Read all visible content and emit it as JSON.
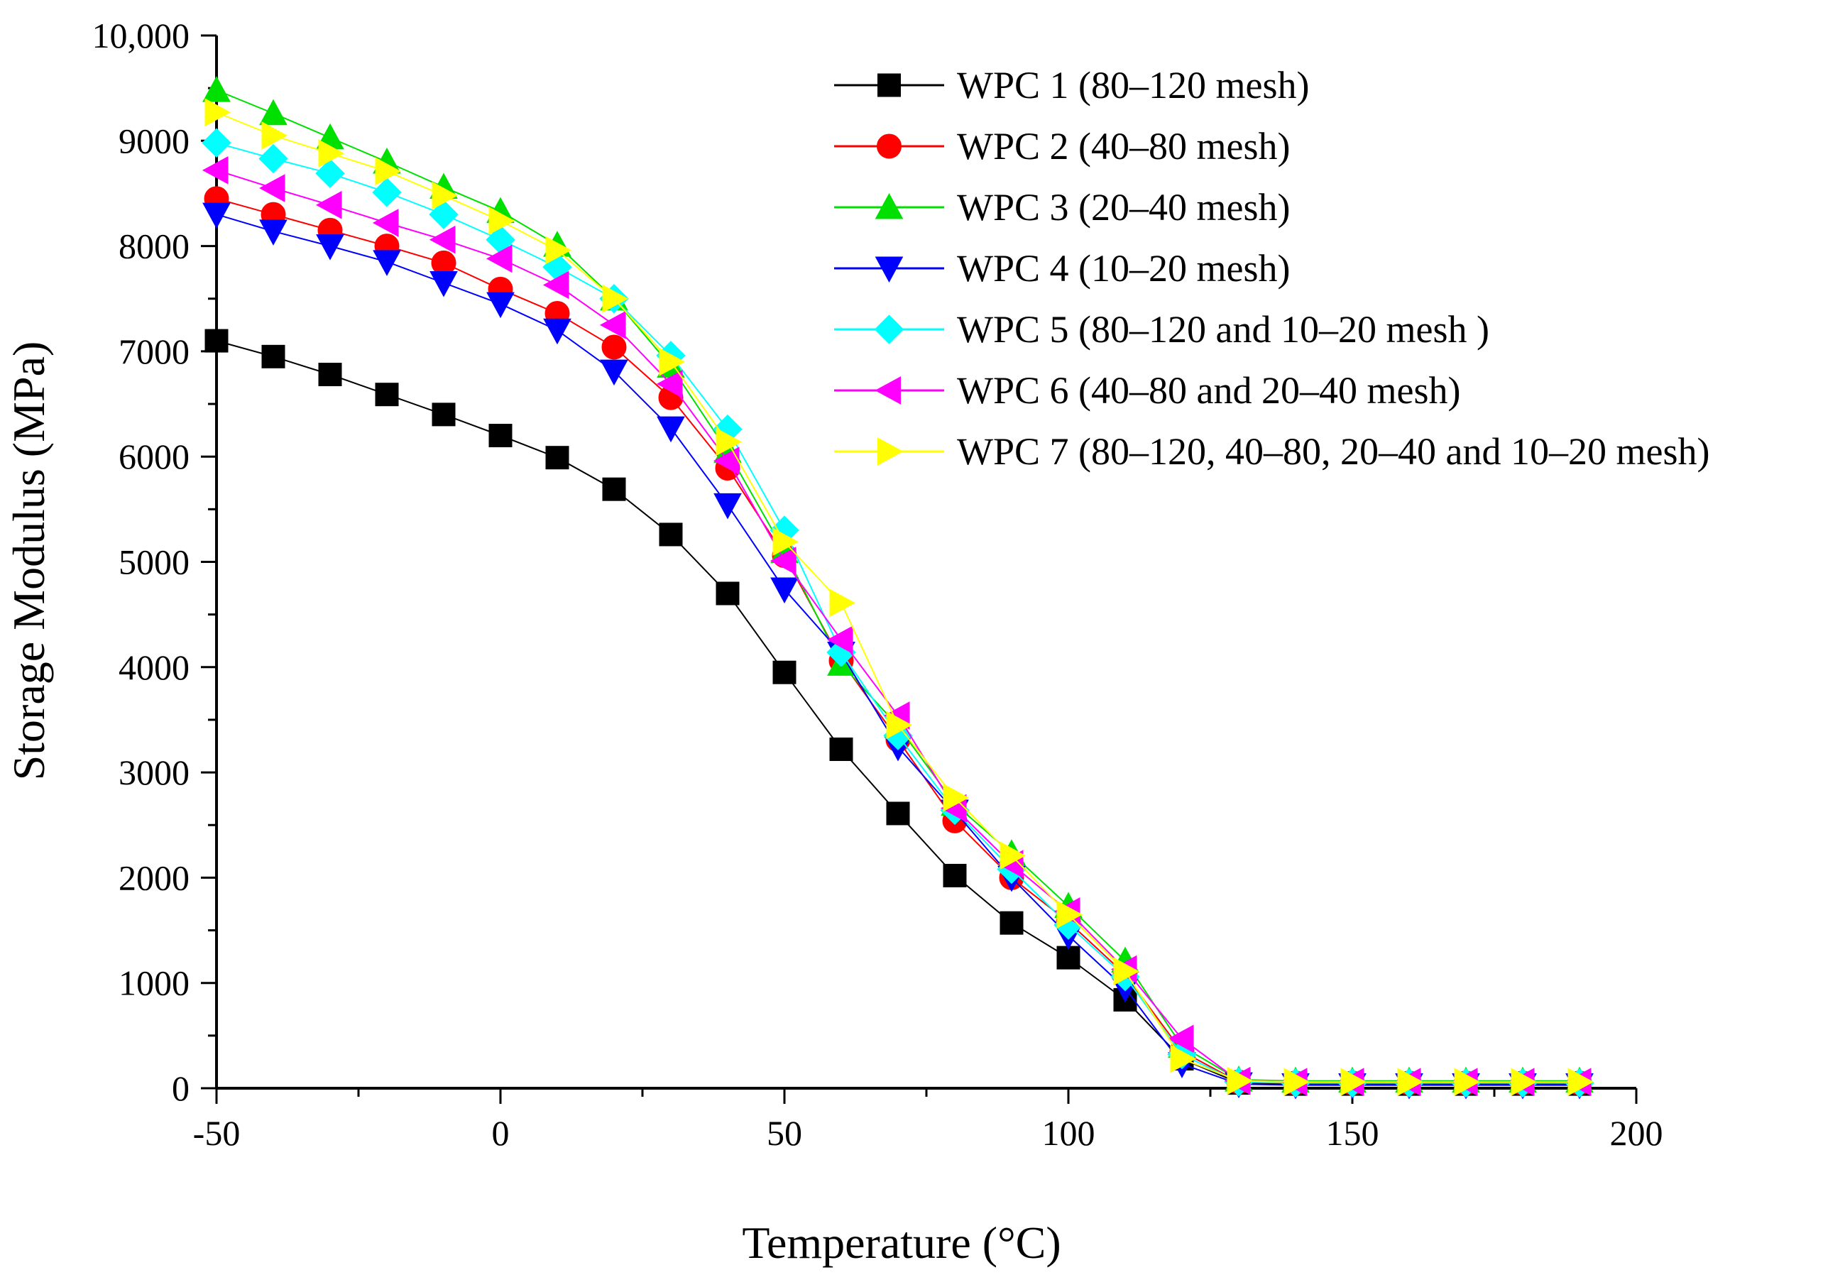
{
  "chart_data": {
    "type": "line",
    "title": "",
    "xlabel": "Temperature (°C)",
    "ylabel": "Storage Modulus (MPa)",
    "xlim": [
      -50,
      200
    ],
    "ylim": [
      0,
      10000
    ],
    "x_ticks": [
      -50,
      0,
      50,
      100,
      150,
      200
    ],
    "x_tick_labels": [
      "-50",
      "0",
      "50",
      "100",
      "150",
      "200"
    ],
    "y_ticks": [
      0,
      1000,
      2000,
      3000,
      4000,
      5000,
      6000,
      7000,
      8000,
      9000,
      10000
    ],
    "y_tick_labels": [
      "0",
      "1000",
      "2000",
      "3000",
      "4000",
      "5000",
      "6000",
      "7000",
      "8000",
      "9000",
      "10,000"
    ],
    "grid": false,
    "legend_position": "top-right",
    "x": [
      -50,
      -40,
      -30,
      -20,
      -10,
      0,
      10,
      20,
      30,
      40,
      50,
      60,
      70,
      80,
      90,
      100,
      110,
      120,
      130,
      140,
      150,
      160,
      170,
      180,
      190
    ],
    "series": [
      {
        "name": "WPC 1 (80–120 mesh)",
        "color": "#000000",
        "marker": "square",
        "values": [
          7100,
          6950,
          6780,
          6590,
          6400,
          6200,
          5990,
          5690,
          5260,
          4700,
          3950,
          3220,
          2610,
          2020,
          1570,
          1240,
          840,
          280,
          50,
          40,
          40,
          40,
          40,
          40,
          40
        ]
      },
      {
        "name": "WPC 2 (40–80 mesh)",
        "color": "#ff0000",
        "marker": "circle",
        "values": [
          8450,
          8300,
          8150,
          8000,
          7840,
          7590,
          7360,
          7040,
          6560,
          5890,
          5060,
          4060,
          3310,
          2540,
          2000,
          1580,
          1080,
          350,
          60,
          50,
          50,
          50,
          50,
          50,
          50
        ]
      },
      {
        "name": "WPC 3 (20–40 mesh)",
        "color": "#00e000",
        "marker": "triangle-up",
        "values": [
          9480,
          9260,
          9030,
          8800,
          8560,
          8330,
          8010,
          7500,
          6860,
          6050,
          5100,
          4030,
          3440,
          2700,
          2230,
          1730,
          1210,
          400,
          80,
          70,
          70,
          70,
          70,
          70,
          70
        ]
      },
      {
        "name": "WPC 4 (10–20 mesh)",
        "color": "#0000ff",
        "marker": "triangle-down",
        "values": [
          8300,
          8140,
          8000,
          7850,
          7650,
          7450,
          7200,
          6810,
          6270,
          5540,
          4740,
          4130,
          3240,
          2630,
          2000,
          1450,
          950,
          230,
          40,
          30,
          30,
          30,
          30,
          30,
          30
        ]
      },
      {
        "name": "WPC 5 (80–120 and 10–20 mesh )",
        "color": "#00ffff",
        "marker": "diamond",
        "values": [
          8980,
          8830,
          8690,
          8510,
          8300,
          8060,
          7800,
          7500,
          6960,
          6260,
          5300,
          4140,
          3350,
          2640,
          2080,
          1550,
          1060,
          320,
          60,
          50,
          50,
          50,
          50,
          50,
          50
        ]
      },
      {
        "name": "WPC 6 (40–80 and 20–40 mesh)",
        "color": "#ff00ff",
        "marker": "triangle-left",
        "values": [
          8720,
          8550,
          8390,
          8220,
          8060,
          7880,
          7630,
          7250,
          6690,
          5960,
          5010,
          4260,
          3540,
          2660,
          2130,
          1680,
          1130,
          470,
          70,
          60,
          60,
          60,
          60,
          60,
          60
        ]
      },
      {
        "name": "WPC 7 (80–120, 40–80, 20–40 and 10–20 mesh)",
        "color": "#ffff00",
        "marker": "triangle-right",
        "values": [
          9270,
          9050,
          8880,
          8710,
          8480,
          8240,
          7960,
          7500,
          6900,
          6140,
          5190,
          4610,
          3450,
          2760,
          2210,
          1650,
          1110,
          280,
          70,
          60,
          60,
          60,
          60,
          60,
          60
        ]
      }
    ]
  }
}
